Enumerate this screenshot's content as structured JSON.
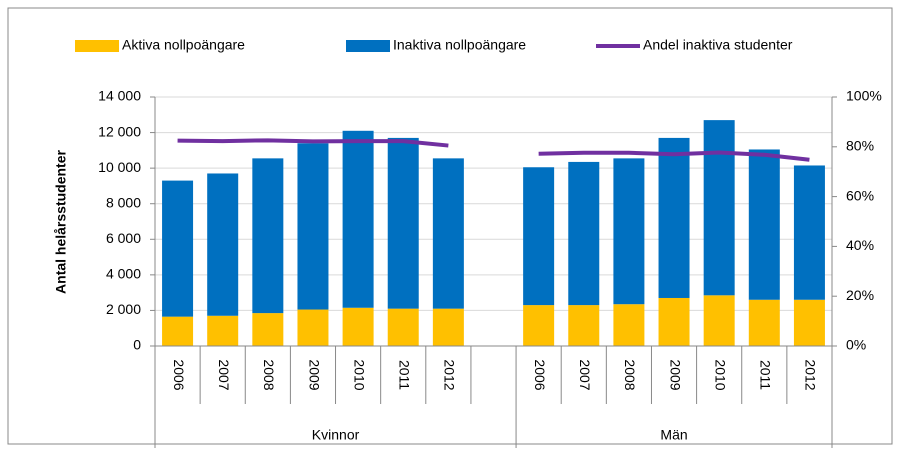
{
  "chart_data": {
    "type": "bar",
    "categories": [
      "2006",
      "2007",
      "2008",
      "2009",
      "2010",
      "2011",
      "2012",
      null,
      "2006",
      "2007",
      "2008",
      "2009",
      "2010",
      "2011",
      "2012"
    ],
    "groups": [
      "Kvinnor",
      "Män"
    ],
    "ylabel": "Antal helårsstudenter",
    "series": [
      {
        "name": "Aktiva nollpoängare",
        "color": "#ffc000",
        "values": [
          1650,
          1700,
          1850,
          2050,
          2150,
          2100,
          2100,
          null,
          2300,
          2300,
          2350,
          2700,
          2850,
          2600,
          2600
        ]
      },
      {
        "name": "Inaktiva nollpoängare",
        "color": "#0070c0",
        "values": [
          7650,
          8000,
          8700,
          9350,
          9950,
          9600,
          8450,
          null,
          7750,
          8050,
          8200,
          9000,
          9850,
          8450,
          7550
        ]
      },
      {
        "name": "Andel inaktiva studenter",
        "color": "#7030a0",
        "axis": "y2",
        "type": "line",
        "values": [
          82.5,
          82.3,
          82.6,
          82.2,
          82.3,
          82.3,
          80.5,
          null,
          77.2,
          77.6,
          77.6,
          77.0,
          77.7,
          76.8,
          74.8
        ]
      }
    ],
    "ylim": [
      0,
      14000
    ],
    "yticks": [
      0,
      {
        "value": 2000,
        "label": "2 000"
      },
      {
        "value": 4000,
        "label": "4 000"
      },
      {
        "value": 6000,
        "label": "6 000"
      },
      {
        "value": 8000,
        "label": "8 000"
      },
      {
        "value": 10000,
        "label": "10 000"
      },
      {
        "value": 12000,
        "label": "12 000"
      },
      {
        "value": 14000,
        "label": "14 000"
      }
    ],
    "y2lim": [
      0,
      100
    ],
    "y2ticks": [
      {
        "value": 0,
        "label": "0%"
      },
      {
        "value": 20,
        "label": "20%"
      },
      {
        "value": 40,
        "label": "40%"
      },
      {
        "value": 60,
        "label": "60%"
      },
      {
        "value": 80,
        "label": "80%"
      },
      {
        "value": 100,
        "label": "100%"
      }
    ],
    "grid": true
  }
}
